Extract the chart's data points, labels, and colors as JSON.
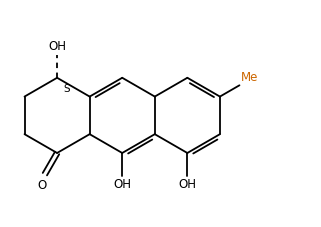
{
  "bg_color": "#ffffff",
  "line_color": "#000000",
  "lw": 1.3,
  "figsize": [
    3.21,
    2.27
  ],
  "dpi": 100,
  "xlim": [
    0.0,
    8.5
  ],
  "ylim": [
    0.5,
    6.0
  ]
}
